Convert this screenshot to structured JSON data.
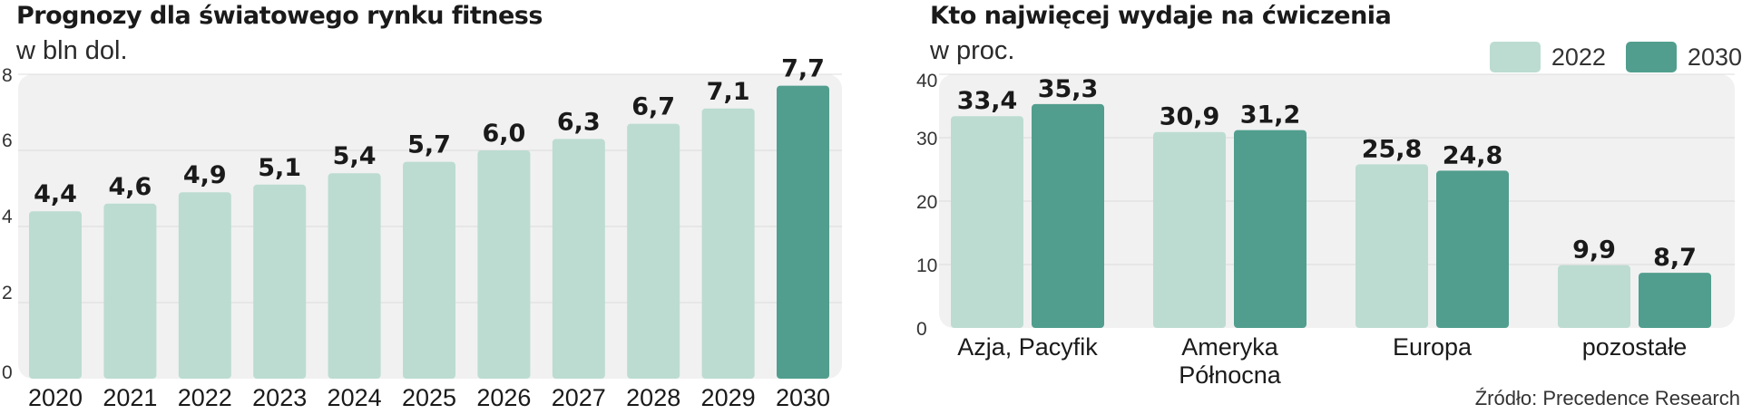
{
  "colors": {
    "light": "#bcdcd1",
    "dark": "#519e8e",
    "panel_bg": "#f1f1f1"
  },
  "chart_data": [
    {
      "type": "bar",
      "title": "Prognozy dla światowego rynku fitness",
      "subtitle": "w bln dol.",
      "categories": [
        "2020",
        "2021",
        "2022",
        "2023",
        "2024",
        "2025",
        "2026",
        "2027",
        "2028",
        "2029",
        "2030"
      ],
      "values": [
        4.4,
        4.6,
        4.9,
        5.1,
        5.4,
        5.7,
        6.0,
        6.3,
        6.7,
        7.1,
        7.7
      ],
      "value_labels": [
        "4,4",
        "4,6",
        "4,9",
        "5,1",
        "5,4",
        "5,7",
        "6,0",
        "6,3",
        "6,7",
        "7,1",
        "7,7"
      ],
      "highlight_index": 10,
      "ylim": [
        0,
        8
      ],
      "yticks": [
        0,
        2,
        4,
        6,
        8
      ],
      "grid": true,
      "xlabel": "",
      "ylabel": ""
    },
    {
      "type": "bar",
      "title": "Kto najwięcej wydaje na ćwiczenia",
      "subtitle": "w proc.",
      "categories": [
        "Azja, Pacyfik",
        "Ameryka\nPółnocna",
        "Europa",
        "pozostałe"
      ],
      "series": [
        {
          "name": "2022",
          "values": [
            33.4,
            30.9,
            25.8,
            9.9
          ],
          "value_labels": [
            "33,4",
            "30,9",
            "25,8",
            "9,9"
          ]
        },
        {
          "name": "2030",
          "values": [
            35.3,
            31.2,
            24.8,
            8.7
          ],
          "value_labels": [
            "35,3",
            "31,2",
            "24,8",
            "8,7"
          ]
        }
      ],
      "ylim": [
        0,
        40
      ],
      "yticks": [
        0,
        10,
        20,
        30,
        40
      ],
      "grid": true,
      "legend": "top-right",
      "xlabel": "",
      "ylabel": ""
    }
  ],
  "source": "Źródło: Precedence Research"
}
